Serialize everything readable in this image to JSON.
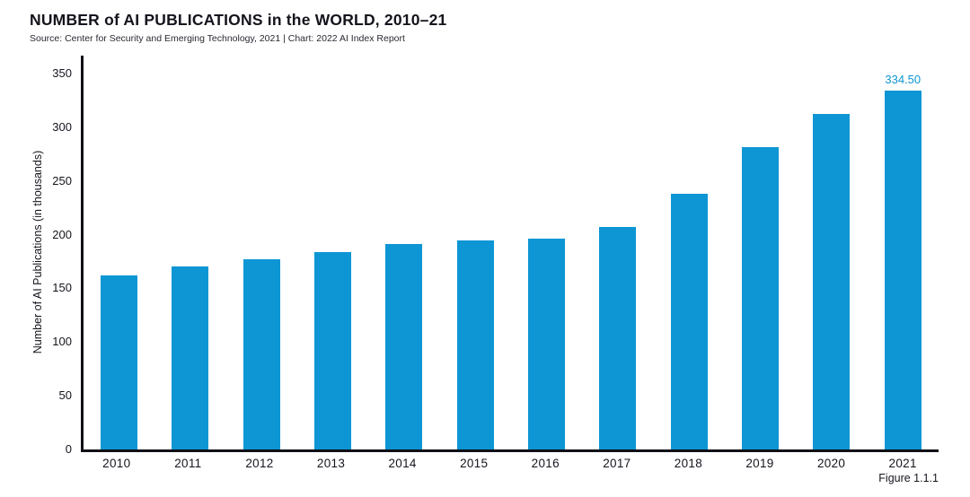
{
  "header": {
    "title": "NUMBER of AI PUBLICATIONS in the WORLD, 2010–21",
    "source": "Source: Center for Security and Emerging Technology, 2021 | Chart: 2022 AI Index Report"
  },
  "figure_caption": "Figure 1.1.1",
  "chart_data": {
    "type": "bar",
    "title": "NUMBER of AI PUBLICATIONS in the WORLD, 2010–21",
    "source": "Source: Center for Security and Emerging Technology, 2021 | Chart: 2022 AI Index Report",
    "categories": [
      "2010",
      "2011",
      "2012",
      "2013",
      "2014",
      "2015",
      "2016",
      "2017",
      "2018",
      "2019",
      "2020",
      "2021"
    ],
    "values": [
      162.44,
      170.2,
      177.0,
      184.0,
      191.7,
      194.9,
      196.3,
      207.4,
      238.1,
      281.6,
      312.2,
      334.5
    ],
    "xlabel": "",
    "ylabel": "Number of AI Publications (in thousands)",
    "yticks": [
      0,
      50,
      100,
      150,
      200,
      250,
      300,
      350
    ],
    "ylim": [
      0,
      367
    ],
    "grid": false,
    "legend": null,
    "bar_color": "#0e96d4",
    "axis_color": "#101018",
    "annotation": {
      "category": "2021",
      "text": "334.50",
      "color": "#0e96d4"
    }
  }
}
